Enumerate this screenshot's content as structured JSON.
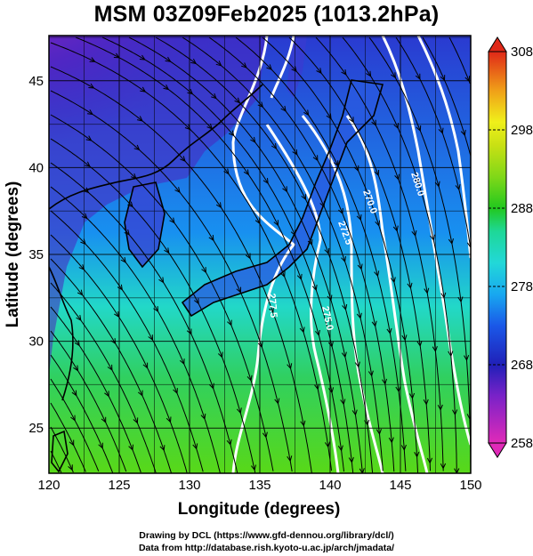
{
  "title": "MSM 03Z09Feb2025 (1013.2hPa)",
  "axes": {
    "xlabel": "Longitude (degrees)",
    "ylabel": "Latitude  (degrees)",
    "x_ticks": [
      "120",
      "125",
      "130",
      "135",
      "140",
      "145",
      "150"
    ],
    "y_ticks": [
      "25",
      "30",
      "35",
      "40",
      "45"
    ]
  },
  "colorbar": {
    "ticks": [
      "308",
      "298",
      "288",
      "278",
      "268",
      "258"
    ],
    "range": [
      258,
      308
    ],
    "colors": [
      "#e82ab8",
      "#8a22c8",
      "#2020b8",
      "#1a50e0",
      "#1aa8f0",
      "#22d8d8",
      "#1ed898",
      "#22c81e",
      "#80d818",
      "#c8e014",
      "#f0f01a",
      "#f0b018",
      "#f07018",
      "#e02818"
    ]
  },
  "contour_labels": [
    "270.0",
    "272.5",
    "275.0",
    "277.5",
    "280.0",
    "282.5",
    "285.0"
  ],
  "credits": {
    "line1": "Drawing by DCL (https://www.gfd-dennou.org/library/dcl/)",
    "line2": "Data from http://database.rish.kyoto-u.ac.jp/arch/jmadata/"
  },
  "chart_data": {
    "type": "heatmap",
    "title": "MSM 03Z09Feb2025 (1013.2hPa)",
    "xlabel": "Longitude (degrees)",
    "ylabel": "Latitude  (degrees)",
    "xlim": [
      120,
      150
    ],
    "ylim": [
      22.4,
      47.6
    ],
    "colorbar_range": [
      258,
      308
    ],
    "colorbar_ticks": [
      258,
      268,
      278,
      288,
      298,
      308
    ],
    "grid": true,
    "field": "temperature with wind streamlines",
    "contour_values": [
      270.0,
      272.5,
      275.0,
      277.5,
      280.0,
      282.5,
      285.0
    ]
  }
}
